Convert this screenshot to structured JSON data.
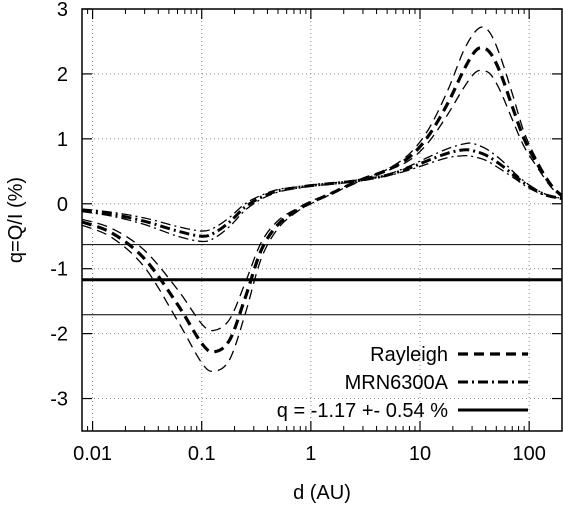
{
  "chart_data": {
    "type": "line",
    "xlabel": "d (AU)",
    "ylabel": "q=Q/I (%)",
    "xscale": "log",
    "xlim": [
      0.008,
      200
    ],
    "ylim": [
      -3.5,
      3
    ],
    "grid": true,
    "legend_position": "bottom-right",
    "x_ticks": [
      {
        "value": 0.01,
        "label": "0.01"
      },
      {
        "value": 0.1,
        "label": "0.1"
      },
      {
        "value": 1,
        "label": "1"
      },
      {
        "value": 10,
        "label": "10"
      },
      {
        "value": 100,
        "label": "100"
      }
    ],
    "y_ticks": [
      {
        "value": 3,
        "label": "3"
      },
      {
        "value": 2,
        "label": "2"
      },
      {
        "value": 1,
        "label": "1"
      },
      {
        "value": 0,
        "label": "0"
      },
      {
        "value": -1,
        "label": "-1"
      },
      {
        "value": -2,
        "label": "-2"
      },
      {
        "value": -3,
        "label": "-3"
      }
    ],
    "series": [
      {
        "name": "Rayleigh",
        "style": "dashed",
        "x": [
          0.008,
          0.015,
          0.03,
          0.06,
          0.1,
          0.13,
          0.18,
          0.25,
          0.35,
          0.5,
          0.75,
          1,
          1.5,
          2,
          3,
          5,
          8,
          12,
          18,
          25,
          32,
          38,
          45,
          55,
          70,
          90,
          120,
          160,
          200
        ],
        "y": [
          -0.28,
          -0.45,
          -0.85,
          -1.55,
          -2.15,
          -2.28,
          -2.1,
          -1.45,
          -0.72,
          -0.32,
          -0.1,
          0.02,
          0.15,
          0.25,
          0.38,
          0.52,
          0.72,
          1.05,
          1.55,
          2.05,
          2.35,
          2.4,
          2.3,
          2.0,
          1.5,
          1.0,
          0.6,
          0.28,
          0.12
        ]
      },
      {
        "name": "",
        "style": "thin-dashed",
        "x": [
          0.008,
          0.015,
          0.03,
          0.06,
          0.1,
          0.13,
          0.18,
          0.25,
          0.35,
          0.5,
          0.75,
          1,
          1.5,
          2,
          3,
          5,
          8,
          12,
          18,
          25,
          32,
          38,
          45,
          55,
          70,
          90,
          120,
          160,
          200
        ],
        "y": [
          -0.33,
          -0.52,
          -0.98,
          -1.8,
          -2.45,
          -2.58,
          -2.4,
          -1.7,
          -0.85,
          -0.38,
          -0.12,
          0.0,
          0.14,
          0.24,
          0.37,
          0.53,
          0.77,
          1.15,
          1.75,
          2.35,
          2.65,
          2.72,
          2.6,
          2.25,
          1.7,
          1.1,
          0.65,
          0.3,
          0.12
        ]
      },
      {
        "name": "",
        "style": "thin-dashed",
        "x": [
          0.008,
          0.015,
          0.03,
          0.06,
          0.1,
          0.13,
          0.18,
          0.25,
          0.35,
          0.5,
          0.75,
          1,
          1.5,
          2,
          3,
          5,
          8,
          12,
          18,
          25,
          32,
          38,
          45,
          55,
          70,
          90,
          120,
          160,
          200
        ],
        "y": [
          -0.24,
          -0.38,
          -0.72,
          -1.32,
          -1.85,
          -1.95,
          -1.78,
          -1.22,
          -0.6,
          -0.26,
          -0.07,
          0.04,
          0.16,
          0.26,
          0.39,
          0.51,
          0.67,
          0.95,
          1.38,
          1.78,
          2.02,
          2.05,
          1.98,
          1.72,
          1.3,
          0.88,
          0.55,
          0.25,
          0.12
        ]
      },
      {
        "name": "MRN6300A",
        "style": "dash-dot",
        "x": [
          0.008,
          0.015,
          0.03,
          0.06,
          0.1,
          0.13,
          0.18,
          0.25,
          0.35,
          0.5,
          0.75,
          1,
          1.5,
          2,
          3,
          5,
          8,
          12,
          18,
          25,
          30,
          40,
          55,
          75,
          100,
          140,
          200
        ],
        "y": [
          -0.1,
          -0.16,
          -0.27,
          -0.42,
          -0.5,
          -0.45,
          -0.28,
          -0.05,
          0.1,
          0.2,
          0.25,
          0.28,
          0.31,
          0.33,
          0.37,
          0.44,
          0.55,
          0.67,
          0.78,
          0.83,
          0.82,
          0.75,
          0.6,
          0.42,
          0.27,
          0.14,
          0.08
        ]
      },
      {
        "name": "",
        "style": "thin-dash-dot",
        "x": [
          0.008,
          0.015,
          0.03,
          0.06,
          0.1,
          0.13,
          0.18,
          0.25,
          0.35,
          0.5,
          0.75,
          1,
          1.5,
          2,
          3,
          5,
          8,
          12,
          18,
          25,
          30,
          40,
          55,
          75,
          100,
          140,
          200
        ],
        "y": [
          -0.08,
          -0.13,
          -0.22,
          -0.35,
          -0.42,
          -0.37,
          -0.21,
          0.0,
          0.13,
          0.22,
          0.26,
          0.29,
          0.32,
          0.34,
          0.38,
          0.45,
          0.58,
          0.72,
          0.85,
          0.92,
          0.93,
          0.85,
          0.68,
          0.46,
          0.29,
          0.15,
          0.08
        ]
      },
      {
        "name": "",
        "style": "thin-dash-dot",
        "x": [
          0.008,
          0.015,
          0.03,
          0.06,
          0.1,
          0.13,
          0.18,
          0.25,
          0.35,
          0.5,
          0.75,
          1,
          1.5,
          2,
          3,
          5,
          8,
          12,
          18,
          25,
          30,
          40,
          55,
          75,
          100,
          140,
          200
        ],
        "y": [
          -0.12,
          -0.19,
          -0.32,
          -0.5,
          -0.58,
          -0.53,
          -0.35,
          -0.1,
          0.07,
          0.18,
          0.24,
          0.27,
          0.3,
          0.32,
          0.36,
          0.43,
          0.52,
          0.62,
          0.71,
          0.74,
          0.73,
          0.67,
          0.53,
          0.38,
          0.24,
          0.13,
          0.08
        ]
      }
    ],
    "hlines": [
      {
        "name": "q = -1.17 +- 0.54 %",
        "style": "solid-thick",
        "y": -1.17
      },
      {
        "name": "",
        "style": "solid-thin",
        "y": -0.63
      },
      {
        "name": "",
        "style": "solid-thin",
        "y": -1.71
      }
    ],
    "legend": [
      {
        "label": "Rayleigh",
        "style": "dashed"
      },
      {
        "label": "MRN6300A",
        "style": "dash-dot"
      },
      {
        "label": "q = -1.17 +- 0.54 %",
        "style": "solid-thick"
      }
    ]
  }
}
